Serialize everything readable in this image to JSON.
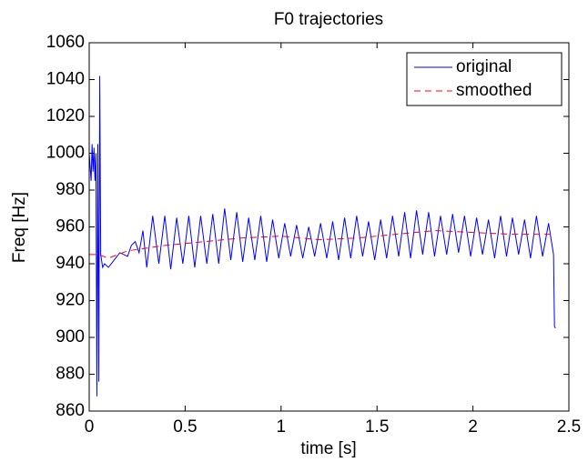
{
  "chart_data": {
    "type": "line",
    "title": "F0 trajectories",
    "x_label": "time [s]",
    "y_label": "Freq [Hz]",
    "xlim": [
      0,
      2.5
    ],
    "xticks": [
      0,
      0.5,
      1,
      1.5,
      2,
      2.5
    ],
    "ylim": [
      860,
      1060
    ],
    "yticks": [
      860,
      880,
      900,
      920,
      940,
      960,
      980,
      1000,
      1020,
      1040,
      1060
    ],
    "grid": false,
    "legend": "upper right",
    "series": [
      {
        "name": "original",
        "color": "#0000ff",
        "dash": "solid",
        "x": [
          0,
          0.01,
          0.015,
          0.02,
          0.025,
          0.03,
          0.035,
          0.04,
          0.045,
          0.05,
          0.055,
          0.06,
          0.07,
          0.08,
          0.1,
          0.13,
          0.16,
          0.2,
          0.22,
          0.24,
          0.26,
          0.28,
          0.3,
          0.331,
          0.363,
          0.394,
          0.425,
          0.456,
          0.488,
          0.519,
          0.55,
          0.581,
          0.613,
          0.644,
          0.675,
          0.706,
          0.738,
          0.769,
          0.8,
          0.831,
          0.863,
          0.894,
          0.925,
          0.956,
          0.988,
          1.019,
          1.05,
          1.081,
          1.113,
          1.144,
          1.175,
          1.206,
          1.238,
          1.269,
          1.3,
          1.331,
          1.363,
          1.394,
          1.425,
          1.456,
          1.488,
          1.519,
          1.55,
          1.581,
          1.613,
          1.644,
          1.675,
          1.706,
          1.738,
          1.769,
          1.8,
          1.831,
          1.863,
          1.894,
          1.925,
          1.956,
          1.988,
          2.019,
          2.05,
          2.081,
          2.113,
          2.144,
          2.175,
          2.206,
          2.238,
          2.269,
          2.3,
          2.331,
          2.363,
          2.394,
          2.42,
          2.425,
          2.43
        ],
        "values": [
          1000,
          985,
          1005,
          990,
          1003,
          985,
          1000,
          868,
          1005,
          876,
          1042,
          945,
          938,
          940,
          938,
          942,
          946,
          944,
          950,
          952,
          946,
          958,
          938,
          966,
          940,
          966,
          937,
          965,
          940,
          966,
          938,
          966,
          940,
          967,
          940,
          970,
          942,
          968,
          941,
          965,
          942,
          966,
          941,
          964,
          943,
          962,
          944,
          961,
          943,
          960,
          944,
          962,
          943,
          963,
          942,
          965,
          943,
          966,
          944,
          963,
          942,
          964,
          943,
          966,
          944,
          968,
          943,
          969,
          945,
          968,
          944,
          966,
          945,
          967,
          946,
          966,
          944,
          965,
          945,
          964,
          943,
          966,
          944,
          965,
          945,
          964,
          943,
          966,
          944,
          962,
          945,
          906,
          905
        ]
      },
      {
        "name": "smoothed",
        "color": "#ff0000",
        "dash": "dashed",
        "x": [
          0,
          0.05,
          0.1,
          0.2,
          0.4,
          0.6,
          0.8,
          1.0,
          1.2,
          1.4,
          1.6,
          1.8,
          2.0,
          2.2,
          2.42
        ],
        "values": [
          945,
          945,
          943,
          947,
          950,
          952,
          954,
          955,
          953,
          954,
          956,
          958,
          957,
          956,
          956
        ]
      }
    ]
  }
}
